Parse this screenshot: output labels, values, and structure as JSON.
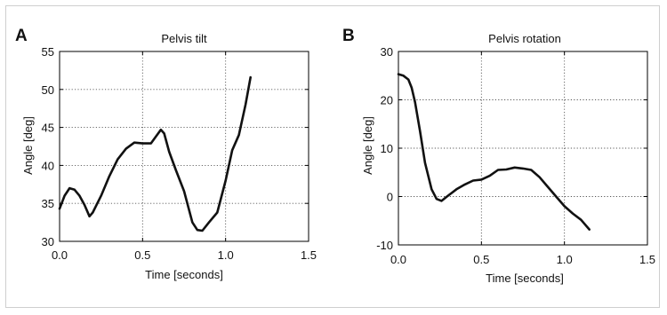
{
  "chart_data": [
    {
      "type": "line",
      "panel_label": "A",
      "title": "Pelvis tilt",
      "xlabel": "Time [seconds]",
      "ylabel": "Angle [deg]",
      "xlim": [
        0,
        1.5
      ],
      "ylim": [
        30,
        55
      ],
      "xticks": [
        0.0,
        0.5,
        1.0,
        1.5
      ],
      "xtick_labels": [
        "0.0",
        "0.5",
        "1.0",
        "1.5"
      ],
      "yticks": [
        30,
        35,
        40,
        45,
        50,
        55
      ],
      "ytick_labels": [
        "30",
        "35",
        "40",
        "45",
        "50",
        "55"
      ],
      "grid": true,
      "series": [
        {
          "x": [
            0.0,
            0.03,
            0.06,
            0.09,
            0.12,
            0.15,
            0.18,
            0.2,
            0.25,
            0.3,
            0.35,
            0.4,
            0.45,
            0.5,
            0.55,
            0.58,
            0.61,
            0.63,
            0.66,
            0.7,
            0.75,
            0.8,
            0.83,
            0.86,
            0.9,
            0.95,
            1.0,
            1.04,
            1.08,
            1.12,
            1.15
          ],
          "y": [
            34.3,
            36.0,
            37.0,
            36.8,
            36.0,
            34.8,
            33.3,
            33.8,
            36.0,
            38.6,
            40.8,
            42.2,
            43.0,
            42.9,
            42.9,
            43.8,
            44.7,
            44.2,
            41.8,
            39.4,
            36.6,
            32.5,
            31.5,
            31.4,
            32.5,
            33.8,
            38.0,
            42.0,
            44.0,
            48.0,
            51.6
          ]
        }
      ]
    },
    {
      "type": "line",
      "panel_label": "B",
      "title": "Pelvis rotation",
      "xlabel": "Time [seconds]",
      "ylabel": "Angle [deg]",
      "xlim": [
        0,
        1.5
      ],
      "ylim": [
        -10,
        30
      ],
      "xticks": [
        0.0,
        0.5,
        1.0,
        1.5
      ],
      "xtick_labels": [
        "0.0",
        "0.5",
        "1.0",
        "1.5"
      ],
      "yticks": [
        -10,
        0,
        10,
        20,
        30
      ],
      "ytick_labels": [
        "-10",
        "0",
        "10",
        "20",
        "30"
      ],
      "grid": true,
      "series": [
        {
          "x": [
            0.0,
            0.03,
            0.06,
            0.08,
            0.1,
            0.13,
            0.16,
            0.2,
            0.23,
            0.26,
            0.3,
            0.35,
            0.4,
            0.45,
            0.5,
            0.55,
            0.6,
            0.65,
            0.7,
            0.75,
            0.8,
            0.85,
            0.9,
            0.95,
            1.0,
            1.05,
            1.1,
            1.15
          ],
          "y": [
            25.3,
            25.0,
            24.2,
            22.5,
            19.5,
            13.5,
            7.0,
            1.5,
            -0.5,
            -0.9,
            0.2,
            1.5,
            2.5,
            3.3,
            3.5,
            4.3,
            5.5,
            5.6,
            6.0,
            5.8,
            5.5,
            4.0,
            2.0,
            0.0,
            -2.0,
            -3.5,
            -4.8,
            -6.8
          ]
        }
      ]
    }
  ]
}
